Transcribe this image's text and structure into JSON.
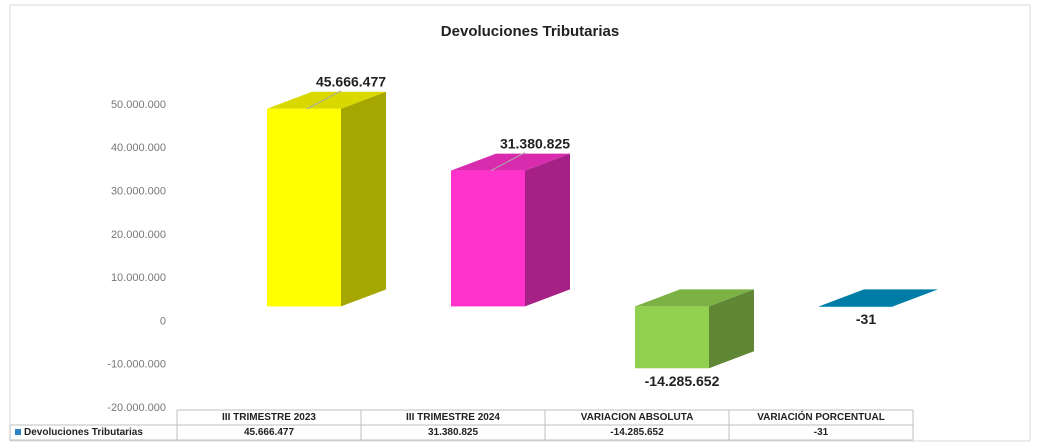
{
  "chart_data": {
    "type": "bar3d",
    "title": "Devoluciones Tributarias",
    "categories": [
      "III TRIMESTRE 2023",
      "III TRIMESTRE 2024",
      "VARIACION ABSOLUTA",
      "VARIACIÓN PORCENTUAL"
    ],
    "series": [
      {
        "name": "Devoluciones Tributarias",
        "color": "#2e86c1",
        "colors": [
          "#ffff00",
          "#ff33cc",
          "#92d050",
          "#0093c4"
        ],
        "values": [
          45666477,
          31380825,
          -14285652,
          -31
        ],
        "value_labels": [
          "45.666.477",
          "31.380.825",
          "-14.285.652",
          "-31"
        ]
      }
    ],
    "ylim": [
      -20000000,
      50000000
    ],
    "yticks": [
      {
        "value": 50000000,
        "label": "50.000.000"
      },
      {
        "value": 40000000,
        "label": "40.000.000"
      },
      {
        "value": 30000000,
        "label": "30.000.000"
      },
      {
        "value": 20000000,
        "label": "20.000.000"
      },
      {
        "value": 10000000,
        "label": "10.000.000"
      },
      0,
      {
        "value": -10000000,
        "label": "-10.000.000"
      },
      {
        "value": -20000000,
        "label": "-20.000.000"
      }
    ],
    "data_table": true
  }
}
